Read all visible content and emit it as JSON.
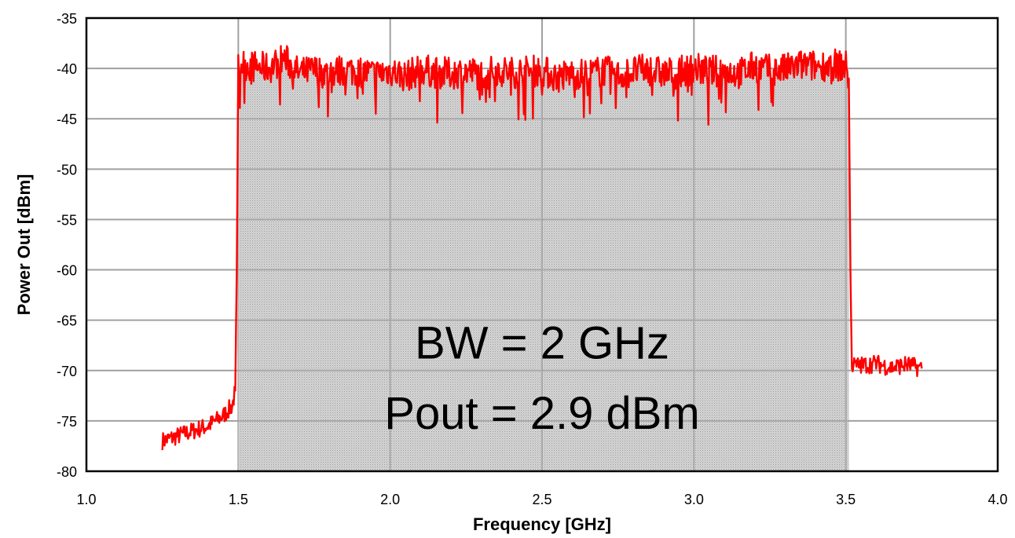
{
  "chart_data": {
    "type": "line",
    "xlabel": "Frequency [GHz]",
    "ylabel": "Power Out [dBm]",
    "xlim": [
      1.0,
      4.0
    ],
    "ylim": [
      -80,
      -35
    ],
    "x_ticks": [
      "1.0",
      "1.5",
      "2.0",
      "2.5",
      "3.0",
      "3.5",
      "4.0"
    ],
    "y_ticks": [
      "-35",
      "-40",
      "-45",
      "-50",
      "-55",
      "-60",
      "-65",
      "-70",
      "-75",
      "-80"
    ],
    "grid": true,
    "line_color": "#ff0000",
    "fill_color": "#c8c8c8",
    "shaded_band": [
      1.5,
      3.51
    ],
    "annotations": [
      "BW = 2 GHz",
      "Pout = 2.9 dBm"
    ],
    "series": [
      {
        "x": [
          1.25,
          1.3,
          1.35,
          1.4,
          1.45,
          1.48,
          1.49,
          1.495,
          1.5,
          1.55,
          1.6,
          1.65,
          1.7,
          1.75,
          1.8,
          1.85,
          1.9,
          1.95,
          2.0,
          2.05,
          2.1,
          2.15,
          2.2,
          2.25,
          2.3,
          2.35,
          2.4,
          2.45,
          2.5,
          2.55,
          2.6,
          2.65,
          2.7,
          2.75,
          2.8,
          2.85,
          2.9,
          2.95,
          3.0,
          3.05,
          3.1,
          3.15,
          3.2,
          3.25,
          3.3,
          3.35,
          3.4,
          3.45,
          3.5,
          3.51,
          3.515,
          3.52,
          3.55,
          3.6,
          3.65,
          3.7,
          3.75
        ],
        "values": [
          -77,
          -76.5,
          -76,
          -75.5,
          -74.5,
          -73.5,
          -72,
          -60,
          -39.5,
          -39.8,
          -40,
          -39,
          -40.5,
          -40.2,
          -40.5,
          -40.1,
          -40.3,
          -40.6,
          -40.2,
          -40.8,
          -40.1,
          -40.4,
          -40.5,
          -40.3,
          -40.6,
          -40.2,
          -40.4,
          -40.3,
          -40.2,
          -40.9,
          -40.5,
          -40.6,
          -40.2,
          -40.7,
          -40.3,
          -40.1,
          -40.5,
          -40.4,
          -40,
          -40.3,
          -40.2,
          -40.5,
          -39.8,
          -40.2,
          -40.1,
          -39.7,
          -39.8,
          -39.6,
          -39.8,
          -41,
          -60,
          -69.5,
          -69.5,
          -69.3,
          -69.7,
          -69.4,
          -69.8
        ]
      }
    ]
  }
}
